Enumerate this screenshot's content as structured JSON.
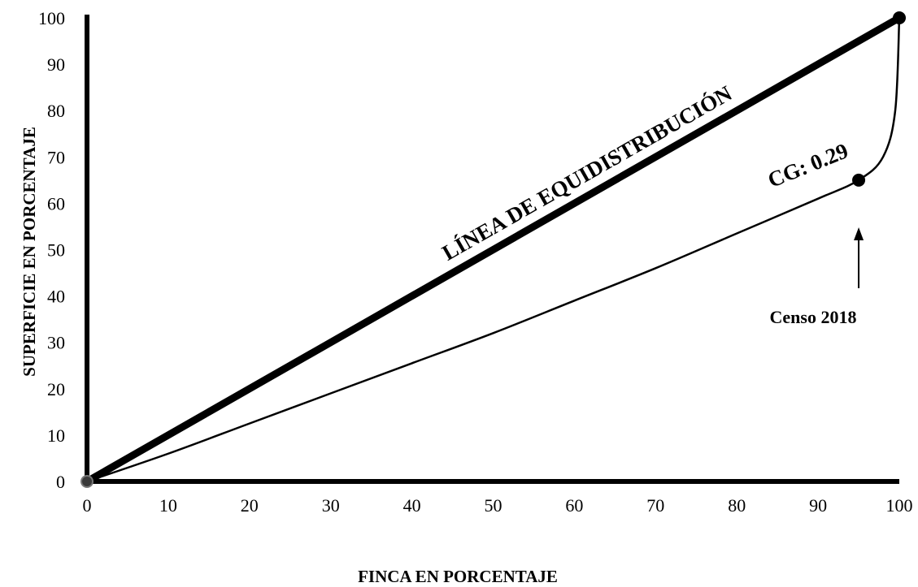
{
  "chart_data": {
    "type": "line",
    "xlabel": "FINCA EN PORCENTAJE",
    "ylabel": "SUPERFICIE EN PORCENTAJE",
    "xlim": [
      0,
      100
    ],
    "ylim": [
      0,
      100
    ],
    "x_ticks": [
      "0",
      "10",
      "20",
      "30",
      "40",
      "50",
      "60",
      "70",
      "80",
      "90",
      "100"
    ],
    "y_ticks": [
      "0",
      "10",
      "20",
      "30",
      "40",
      "50",
      "60",
      "70",
      "80",
      "90",
      "100"
    ],
    "grid": false,
    "series": [
      {
        "name": "LÍNEA DE EQUIDISTRIBUCIÓN",
        "x": [
          0,
          100
        ],
        "y": [
          0,
          100
        ]
      },
      {
        "x": [
          0,
          10,
          20,
          30,
          40,
          50,
          60,
          70,
          80,
          90,
          95,
          98,
          99.5,
          100
        ],
        "y": [
          0,
          6,
          12.5,
          19,
          25.5,
          32,
          39,
          46,
          53.5,
          61,
          65,
          70,
          80,
          100
        ]
      }
    ],
    "annotations": [
      {
        "text": "LÍNEA DE EQUIDISTRIBUCIÓN"
      },
      {
        "text": "CG: 0.29"
      },
      {
        "text": "Censo 2018",
        "x": 95,
        "y": 65
      }
    ]
  }
}
